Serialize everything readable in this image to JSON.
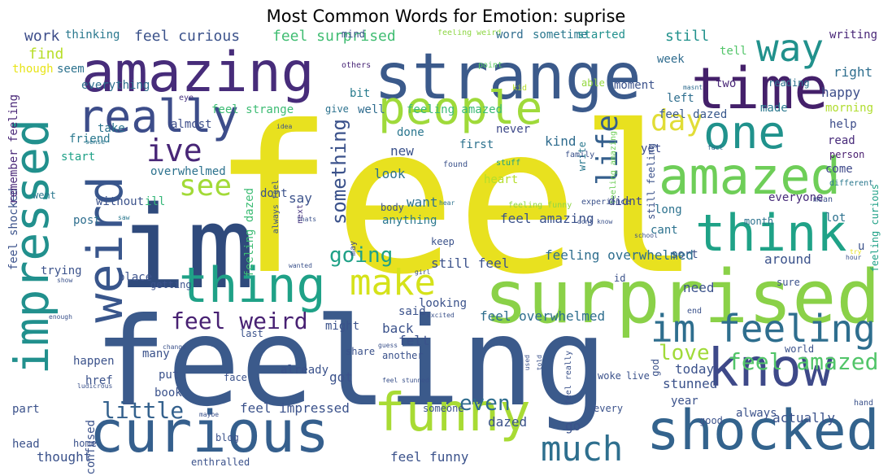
{
  "title": "Most Common Words for Emotion: suprise",
  "words": [
    "feel",
    "feeling",
    "im",
    "surprised",
    "strange",
    "amazing",
    "impressed",
    "curious",
    "shocked",
    "time",
    "people",
    "amazed",
    "think",
    "really",
    "know",
    "weird",
    "thing",
    "funny",
    "one",
    "way",
    "im feeling",
    "make",
    "much",
    "ive",
    "see",
    "life",
    "day",
    "feel weird",
    "feel amazed",
    "something",
    "going",
    "little",
    "love",
    "even",
    "feel curious",
    "feel surprised",
    "work",
    "thinking",
    "sometime",
    "started",
    "still",
    "writing",
    "tell",
    "right",
    "feeling weird",
    "word",
    "find",
    "seem",
    "though",
    "others",
    "point",
    "reading",
    "week",
    "happy",
    "bit",
    "everything",
    "feel strange",
    "well",
    "feeling amazed",
    "moment",
    "two",
    "morning",
    "able",
    "masnt",
    "kid",
    "give",
    "left",
    "feel dazed",
    "help",
    "eye",
    "friend",
    "almost",
    "take",
    "made",
    "read",
    "idea",
    "never",
    "done",
    "new",
    "first",
    "kind",
    "person",
    "come",
    "sense",
    "yet",
    "fact",
    "different",
    "start",
    "found",
    "write",
    "stuff",
    "family",
    "feeling amazing",
    "still feeling",
    "feeling curious",
    "went",
    "without",
    "ill",
    "dont",
    "heart",
    "look",
    "didnt",
    "everyone",
    "mean",
    "overwhelmed",
    "feel shocked",
    "remember feeling",
    "feeling dazed",
    "always feel",
    "feeling funny",
    "experience",
    "lot",
    "say",
    "want",
    "feel amazing",
    "long",
    "saw",
    "post",
    "thats",
    "month",
    "next",
    "hear",
    "dont know",
    "school",
    "cant",
    "anything",
    "body",
    "keep",
    "sort",
    "u",
    "feeling overwhelmed",
    "still feel",
    "may",
    "wanted",
    "try",
    "hour",
    "place",
    "trying",
    "getting",
    "around",
    "id",
    "show",
    "girl",
    "need",
    "sure",
    "enough",
    "looking",
    "end",
    "said",
    "excited",
    "feel overwhelmed",
    "might",
    "back",
    "last",
    "felt",
    "guess",
    "share",
    "another",
    "change",
    "happen",
    "many",
    "href",
    "put",
    "already",
    "face",
    "today",
    "got",
    "feel stunned",
    "world",
    "live",
    "woke",
    "stunned",
    "ludicrous",
    "book",
    "year",
    "feel impressed",
    "part",
    "confused",
    "maybe",
    "every",
    "god",
    "hand",
    "always",
    "someone",
    "dazed",
    "actually",
    "good",
    "go",
    "blog",
    "head",
    "home",
    "thought",
    "feel funny",
    "enthralled",
    "used",
    "told",
    "feel really",
    "mind"
  ]
}
